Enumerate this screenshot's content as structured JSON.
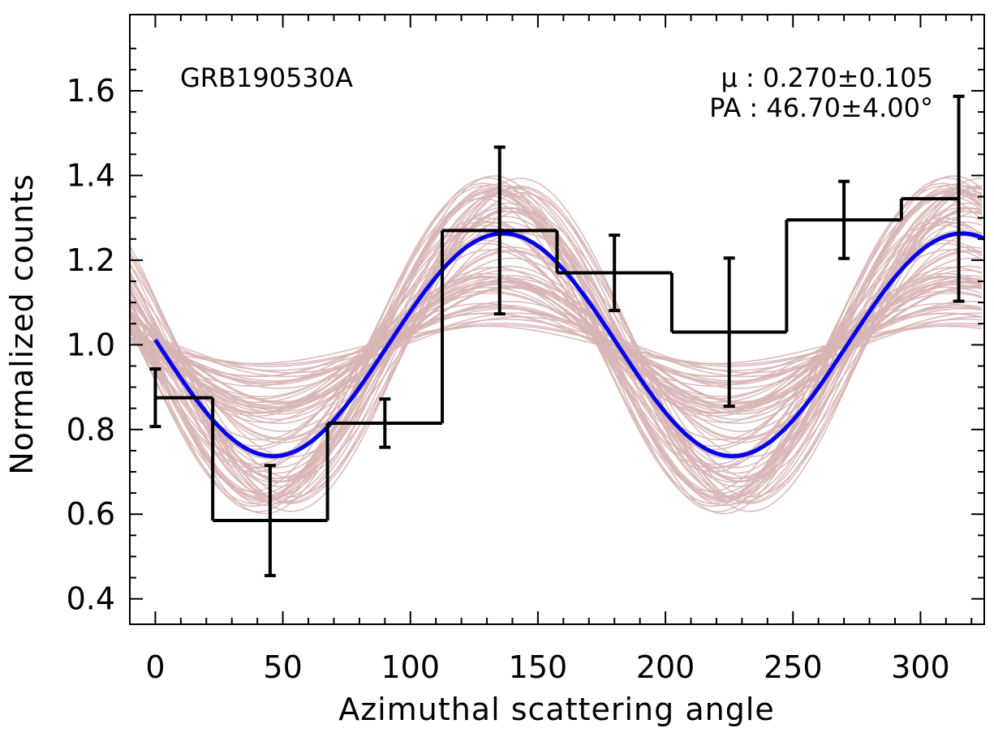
{
  "chart_data": {
    "type": "line",
    "title": "",
    "label": "GRB190530A",
    "xlabel": "Azimuthal scattering angle",
    "ylabel": "Normalized counts",
    "xlim": [
      -10,
      325
    ],
    "ylim": [
      0.34,
      1.78
    ],
    "xticks": [
      0,
      50,
      100,
      150,
      200,
      250,
      300
    ],
    "xtick_labels": [
      "0",
      "50",
      "100",
      "150",
      "200",
      "250",
      "300"
    ],
    "yticks": [
      0.4,
      0.6,
      0.8,
      1.0,
      1.2,
      1.4,
      1.6
    ],
    "ytick_labels": [
      "0.4",
      "0.6",
      "0.8",
      "1.0",
      "1.2",
      "1.4",
      "1.6"
    ],
    "fit_params": {
      "mu_label": "μ : 0.270±0.105",
      "pa_label": "PA :  46.70±4.00°",
      "mu": 0.27,
      "mu_err": 0.105,
      "pa_deg": 46.7,
      "pa_err_deg": 4.0
    },
    "series": [
      {
        "name": "data histogram",
        "kind": "step",
        "color": "#000000",
        "bin_edges": [
          0,
          22.5,
          67.5,
          112.5,
          157.5,
          202.5,
          247.5,
          292.5,
          315
        ],
        "values": [
          0.875,
          0.585,
          0.815,
          1.27,
          1.17,
          1.03,
          1.295,
          1.345
        ]
      },
      {
        "name": "data error bars",
        "kind": "errorbar",
        "color": "#000000",
        "x": [
          0,
          45,
          90,
          135,
          180,
          225,
          270,
          315
        ],
        "y": [
          0.875,
          0.585,
          0.815,
          1.27,
          1.17,
          1.03,
          1.295,
          1.345
        ],
        "err": [
          0.068,
          0.13,
          0.057,
          0.197,
          0.089,
          0.175,
          0.091,
          0.242
        ]
      },
      {
        "name": "best fit",
        "kind": "line",
        "color": "#0000ee",
        "model": "1 + A*cos(2*(phi - phi0))",
        "amplitude": 0.263,
        "phase_deg": 136.3
      },
      {
        "name": "posterior samples",
        "kind": "line-ensemble",
        "color": "#d8b5b5",
        "count": 80,
        "amplitude_range": [
          0.04,
          0.4
        ],
        "phase_center_deg": 136,
        "phase_spread_deg": 8
      }
    ]
  }
}
